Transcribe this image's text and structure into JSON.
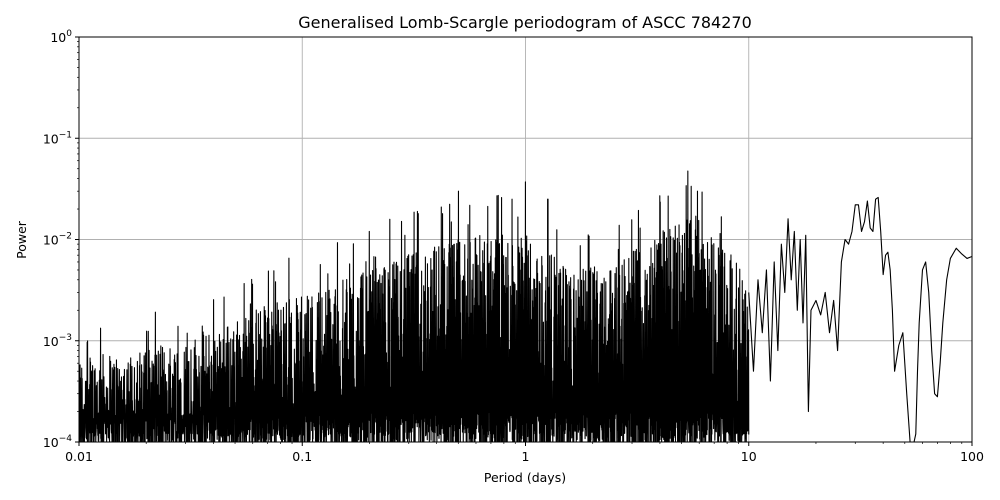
{
  "chart_data": {
    "type": "line",
    "title": "Generalised Lomb-Scargle periodogram of ASCC 784270",
    "xlabel": "Period (days)",
    "ylabel": "Power",
    "xscale": "log",
    "yscale": "log",
    "xlim": [
      0.01,
      100
    ],
    "ylim": [
      0.0001,
      1
    ],
    "grid": true,
    "x_ticks": [
      {
        "value": 0.01,
        "label": "0.01"
      },
      {
        "value": 0.1,
        "label": "0.1"
      },
      {
        "value": 1,
        "label": "1"
      },
      {
        "value": 10,
        "label": "10"
      },
      {
        "value": 100,
        "label": "100"
      }
    ],
    "y_ticks": [
      {
        "value": 0.0001,
        "base": "10",
        "exp": "−4"
      },
      {
        "value": 0.001,
        "base": "10",
        "exp": "−3"
      },
      {
        "value": 0.01,
        "base": "10",
        "exp": "−2"
      },
      {
        "value": 0.1,
        "base": "10",
        "exp": "−1"
      },
      {
        "value": 1,
        "base": "10",
        "exp": "0"
      }
    ],
    "line_color": "#000000",
    "series": [
      {
        "x": [
          10,
          10.5,
          11,
          11.5,
          12,
          12.5,
          13,
          13.5,
          14,
          14.5,
          15,
          15.5,
          16,
          16.5,
          17,
          17.5,
          18,
          18.5,
          19,
          20,
          21,
          22,
          23,
          24,
          25,
          26,
          27,
          28,
          29,
          30,
          31,
          32,
          33,
          34,
          35,
          36,
          37,
          38,
          39,
          40,
          41,
          42,
          43,
          44,
          45,
          47,
          49,
          51,
          53,
          55,
          56,
          57,
          58,
          60,
          62,
          64,
          66,
          68,
          70,
          72,
          74,
          77,
          80,
          85,
          90,
          95,
          100
        ],
        "y": [
          0.003,
          0.0005,
          0.004,
          0.0012,
          0.005,
          0.0004,
          0.006,
          0.0008,
          0.009,
          0.003,
          0.016,
          0.004,
          0.012,
          0.002,
          0.01,
          0.0015,
          0.011,
          0.0002,
          0.002,
          0.0025,
          0.0018,
          0.003,
          0.0012,
          0.0025,
          0.0008,
          0.006,
          0.01,
          0.009,
          0.012,
          0.022,
          0.022,
          0.012,
          0.015,
          0.024,
          0.013,
          0.012,
          0.025,
          0.026,
          0.012,
          0.0045,
          0.007,
          0.0075,
          0.005,
          0.002,
          0.0005,
          0.0009,
          0.0012,
          0.0003,
          8e-05,
          0.0001,
          0.00012,
          0.0005,
          0.0015,
          0.005,
          0.006,
          0.003,
          0.0008,
          0.0003,
          0.00028,
          0.0006,
          0.0015,
          0.004,
          0.0065,
          0.0082,
          0.0072,
          0.0065,
          0.0068
        ]
      }
    ]
  }
}
